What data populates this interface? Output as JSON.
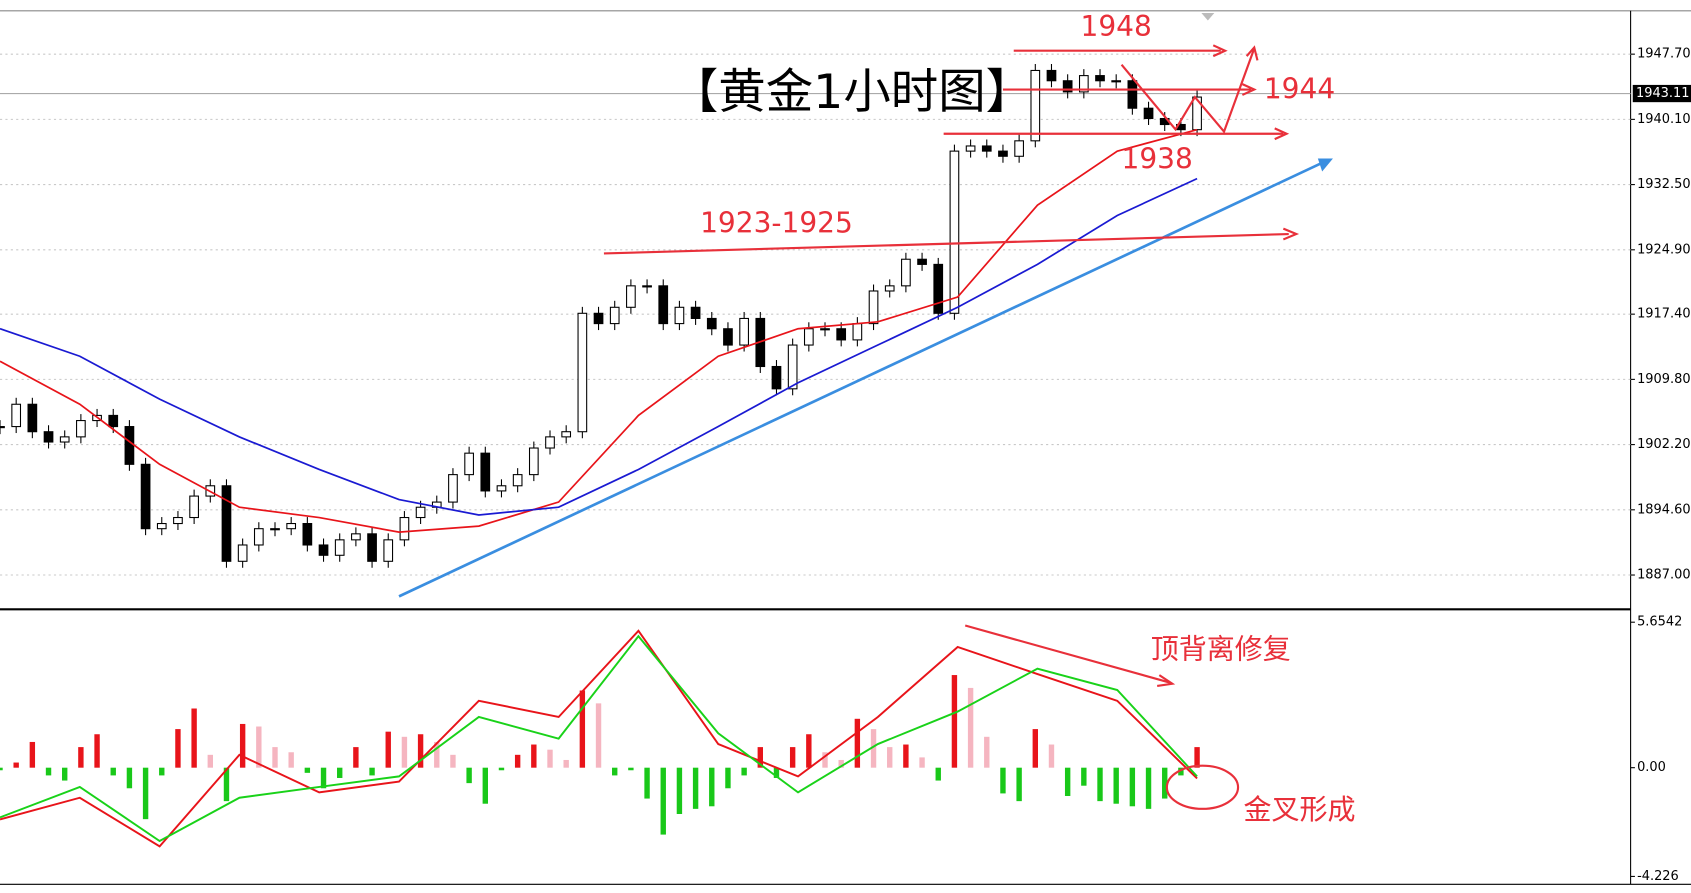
{
  "chart_data": [
    {
      "type": "candle-line",
      "title": "【黄金1小时图】",
      "annotations": [
        "1948",
        "1944",
        "1938",
        "1923-1925"
      ],
      "ylim": [
        1883,
        1952.5
      ],
      "yticks": [
        {
          "value": 1947.7,
          "label": "1947.70"
        },
        {
          "value": 1940.1,
          "label": "1940.10"
        },
        {
          "value": 1932.5,
          "label": "1932.50"
        },
        {
          "value": 1924.9,
          "label": "1924.90"
        },
        {
          "value": 1917.4,
          "label": "1917.40"
        },
        {
          "value": 1909.8,
          "label": "1909.80"
        },
        {
          "value": 1902.2,
          "label": "1902.20"
        },
        {
          "value": 1894.6,
          "label": "1894.60"
        },
        {
          "value": 1887,
          "label": "1887.00"
        }
      ],
      "current_price": {
        "value": 1943.11,
        "label": "1943.11"
      },
      "grid": true,
      "series": [
        {
          "color": "#000000",
          "values": [
            1904.3,
            1906.9,
            1903.7,
            1902.5,
            1903.1,
            1905.0,
            1905.6,
            1904.3,
            1899.9,
            1892.4,
            1893.0,
            1893.7,
            1896.2,
            1897.4,
            1888.6,
            1890.5,
            1892.4,
            1892.4,
            1893.0,
            1890.5,
            1889.3,
            1891.1,
            1891.8,
            1888.6,
            1891.1,
            1893.7,
            1894.9,
            1895.5,
            1898.7,
            1901.2,
            1896.8,
            1897.4,
            1898.7,
            1901.8,
            1903.1,
            1903.7,
            1917.5,
            1916.3,
            1918.2,
            1920.7,
            1920.7,
            1916.3,
            1918.2,
            1916.9,
            1915.7,
            1913.8,
            1916.9,
            1911.3,
            1908.7,
            1913.8,
            1915.7,
            1915.7,
            1914.4,
            1916.3,
            1920.1,
            1920.7,
            1923.8,
            1923.2,
            1917.5,
            1936.4,
            1937.0,
            1936.4,
            1935.8,
            1937.6,
            1945.8,
            1944.6,
            1943.3,
            1945.2,
            1944.6,
            1944.6,
            1941.4,
            1940.2,
            1939.5,
            1938.9,
            1942.7
          ]
        },
        {
          "color": "#e8141a",
          "values": [
            1911.9,
            1906.9,
            1899.9,
            1894.9,
            1893.7,
            1892.0,
            1892.7,
            1895.5,
            1905.6,
            1912.5,
            1915.7,
            1916.5,
            1919.4,
            1930.1,
            1936.4,
            1938.9
          ]
        },
        {
          "color": "#1a1ad2",
          "values": [
            1915.7,
            1912.5,
            1907.5,
            1903.1,
            1899.3,
            1895.8,
            1894.0,
            1894.9,
            1899.3,
            1904.3,
            1909.4,
            1913.8,
            1918.2,
            1923.2,
            1928.9,
            1933.2
          ]
        }
      ]
    },
    {
      "type": "macd",
      "annotations": [
        "顶背离修复",
        "金叉形成"
      ],
      "ylim": [
        -4.45,
        6.07
      ],
      "yticks": [
        5.6542,
        {
          "value": 0,
          "label": "0.00"
        },
        -4.226
      ],
      "histogram": {
        "values": [
          -0.1,
          0.2,
          1.0,
          -0.3,
          -0.5,
          0.8,
          1.3,
          -0.3,
          -0.8,
          -2.0,
          -0.3,
          1.5,
          2.3,
          0.5,
          -1.3,
          1.7,
          1.6,
          0.8,
          0.6,
          -0.2,
          -0.8,
          -0.4,
          0.8,
          -0.3,
          1.4,
          1.2,
          1.3,
          1.0,
          0.5,
          -0.6,
          -1.4,
          -0.1,
          0.5,
          0.9,
          0.7,
          0.3,
          3.0,
          2.5,
          -0.3,
          -0.1,
          -1.2,
          -2.6,
          -1.8,
          -1.6,
          -1.5,
          -0.8,
          -0.3,
          0.8,
          -0.4,
          0.8,
          1.3,
          0.6,
          0.3,
          1.9,
          1.5,
          0.8,
          0.9,
          0.4,
          -0.5,
          3.6,
          3.1,
          1.2,
          -1.0,
          -1.3,
          1.5,
          0.9,
          -1.1,
          -0.7,
          -1.3,
          -1.4,
          -1.5,
          -1.6,
          -1.2,
          -0.3,
          0.8
        ]
      },
      "series": [
        {
          "color": "#e8141a",
          "values": [
            -2.01,
            -1.17,
            -3.06,
            0.5,
            -0.96,
            -0.54,
            2.6,
            1.97,
            5.32,
            0.92,
            -0.34,
            1.97,
            4.69,
            3.64,
            2.6,
            -0.42
          ]
        },
        {
          "color": "#19d219",
          "values": [
            -1.93,
            -0.75,
            -2.85,
            -1.17,
            -0.75,
            -0.34,
            1.97,
            1.13,
            5.11,
            1.34,
            -0.96,
            0.92,
            2.18,
            3.85,
            3.02,
            -0.34
          ]
        }
      ]
    }
  ]
}
